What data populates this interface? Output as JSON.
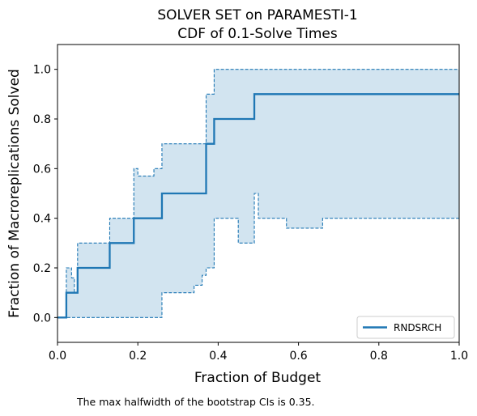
{
  "chart_data": {
    "type": "line",
    "title": "SOLVER SET on PARAMESTI-1",
    "subtitle": "CDF of 0.1-Solve Times",
    "xlabel": "Fraction of Budget",
    "ylabel": "Fraction of Macroreplications Solved",
    "xlim": [
      0,
      1
    ],
    "ylim": [
      -0.1,
      1.1
    ],
    "xticks": [
      "0.0",
      "0.2",
      "0.4",
      "0.6",
      "0.8",
      "1.0"
    ],
    "yticks": [
      "0.0",
      "0.2",
      "0.4",
      "0.6",
      "0.8",
      "1.0"
    ],
    "xtick_values": [
      0,
      0.2,
      0.4,
      0.6,
      0.8,
      1.0
    ],
    "ytick_values": [
      0,
      0.2,
      0.4,
      0.6,
      0.8,
      1.0
    ],
    "legend_position": "bottom-right",
    "grid": false,
    "colors": {
      "line": "#1f77b4",
      "band": "#1f77b4"
    },
    "series": [
      {
        "name": "RNDSRCH",
        "x": [
          0.0,
          0.022,
          0.022,
          0.05,
          0.05,
          0.13,
          0.13,
          0.19,
          0.19,
          0.26,
          0.26,
          0.37,
          0.37,
          0.39,
          0.39,
          0.49,
          0.49,
          1.0
        ],
        "y": [
          0.0,
          0.0,
          0.1,
          0.1,
          0.2,
          0.2,
          0.3,
          0.3,
          0.4,
          0.4,
          0.5,
          0.5,
          0.7,
          0.7,
          0.8,
          0.8,
          0.9,
          0.9
        ]
      }
    ],
    "ci_upper": {
      "x": [
        0.0,
        0.022,
        0.022,
        0.035,
        0.035,
        0.042,
        0.042,
        0.05,
        0.05,
        0.13,
        0.13,
        0.19,
        0.19,
        0.2,
        0.2,
        0.24,
        0.24,
        0.26,
        0.26,
        0.37,
        0.37,
        0.39,
        0.39,
        1.0
      ],
      "y": [
        0.0,
        0.0,
        0.2,
        0.2,
        0.16,
        0.16,
        0.1,
        0.1,
        0.3,
        0.3,
        0.4,
        0.4,
        0.6,
        0.6,
        0.57,
        0.57,
        0.6,
        0.6,
        0.7,
        0.7,
        0.9,
        0.9,
        1.0,
        1.0
      ]
    },
    "ci_lower": {
      "x": [
        0.0,
        0.26,
        0.26,
        0.34,
        0.34,
        0.36,
        0.36,
        0.37,
        0.37,
        0.39,
        0.39,
        0.45,
        0.45,
        0.49,
        0.49,
        0.5,
        0.5,
        0.57,
        0.57,
        0.66,
        0.66,
        1.0
      ],
      "y": [
        0.0,
        0.0,
        0.1,
        0.1,
        0.13,
        0.13,
        0.17,
        0.17,
        0.2,
        0.2,
        0.4,
        0.4,
        0.3,
        0.3,
        0.5,
        0.5,
        0.4,
        0.4,
        0.36,
        0.36,
        0.4,
        0.4
      ]
    },
    "annotation": "The max halfwidth of the bootstrap CIs is 0.35."
  }
}
